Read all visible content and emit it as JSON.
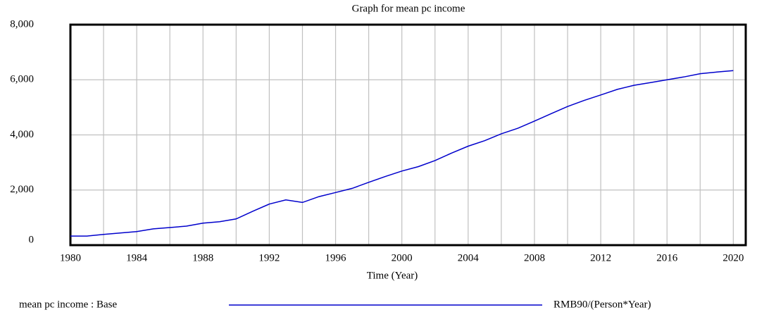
{
  "chart_data": {
    "type": "line",
    "title": "Graph for mean pc income",
    "x_label": "Time (Year)",
    "x": [
      1980,
      1981,
      1982,
      1983,
      1984,
      1985,
      1986,
      1987,
      1988,
      1989,
      1990,
      1991,
      1992,
      1993,
      1994,
      1995,
      1996,
      1997,
      1998,
      1999,
      2000,
      2001,
      2002,
      2003,
      2004,
      2005,
      2006,
      2007,
      2008,
      2009,
      2010,
      2011,
      2012,
      2013,
      2014,
      2015,
      2016,
      2017,
      2018,
      2019,
      2020
    ],
    "series": [
      {
        "name": "mean pc income : Base",
        "units": "RMB90/(Person*Year)",
        "color": "#0000cc",
        "values": [
          330,
          330,
          390,
          440,
          490,
          590,
          640,
          690,
          800,
          850,
          950,
          1230,
          1490,
          1640,
          1550,
          1760,
          1910,
          2060,
          2280,
          2490,
          2690,
          2850,
          3070,
          3340,
          3590,
          3790,
          4040,
          4240,
          4500,
          4770,
          5030,
          5250,
          5450,
          5650,
          5800,
          5900,
          6000,
          6100,
          6220,
          6280,
          6330
        ]
      }
    ],
    "xlim": [
      1980,
      2020.75
    ],
    "xticks": [
      1980,
      1984,
      1988,
      1992,
      1996,
      2000,
      2004,
      2008,
      2012,
      2016,
      2020
    ],
    "xminor": [
      1982,
      1986,
      1990,
      1994,
      1998,
      2002,
      2006,
      2010,
      2014,
      2018
    ],
    "ylim": [
      0,
      8000
    ],
    "yticks": [
      {
        "value": 0,
        "label": "0"
      },
      {
        "value": 2000,
        "label": "2,000"
      },
      {
        "value": 4000,
        "label": "4,000"
      },
      {
        "value": 6000,
        "label": "6,000"
      },
      {
        "value": 8000,
        "label": "8,000"
      }
    ],
    "grid": true
  }
}
